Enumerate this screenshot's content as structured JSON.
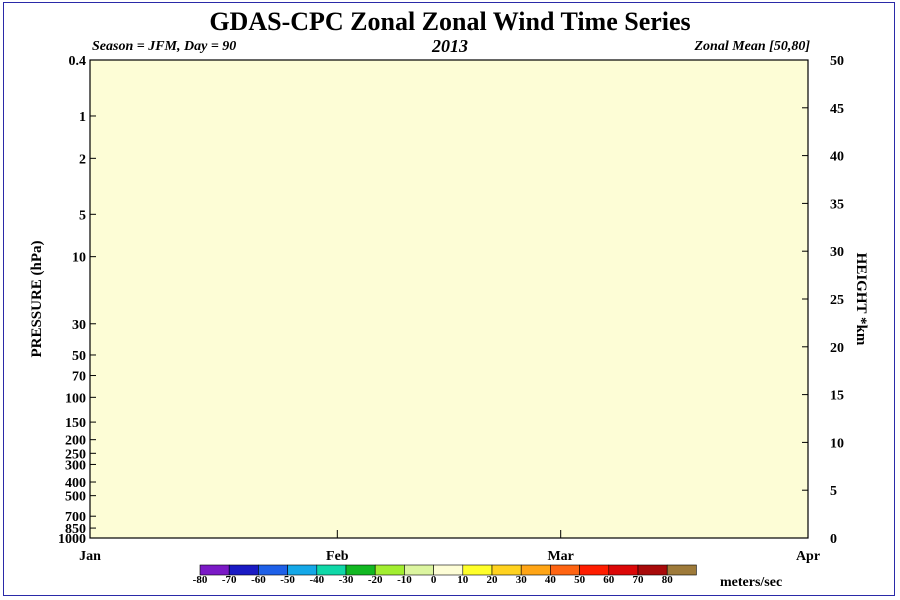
{
  "chart_data": {
    "type": "heatmap",
    "title": "GDAS-CPC Zonal Zonal Wind Time Series",
    "subtitle_left": "Season = JFM, Day =  90",
    "subtitle_center": "2013",
    "subtitle_right": "Zonal Mean [50,80]",
    "ylabel": "PRESSURE (hPa)",
    "ylabel_right": "HEIGHT *km",
    "colorbar_unit": "meters/sec",
    "x_ticks": [
      {
        "label": "Jan",
        "day": 0
      },
      {
        "label": "Feb",
        "day": 31
      },
      {
        "label": "Mar",
        "day": 59
      },
      {
        "label": "Apr",
        "day": 90
      }
    ],
    "xlim": [
      0,
      90
    ],
    "pressure_levels": [
      "0.4",
      "1",
      "2",
      "5",
      "10",
      "30",
      "50",
      "70",
      "100",
      "150",
      "200",
      "250",
      "300",
      "400",
      "500",
      "700",
      "850",
      "1000"
    ],
    "ylim_pressure": [
      1000,
      0.4
    ],
    "height_ticks": [
      "0",
      "5",
      "10",
      "15",
      "20",
      "25",
      "30",
      "35",
      "40",
      "45",
      "50"
    ],
    "ylim_height": [
      0,
      50
    ],
    "colorbar": [
      {
        "label": "-80",
        "from": -80,
        "to": -70,
        "color": "#7b19c6"
      },
      {
        "label": "-70",
        "from": -70,
        "to": -60,
        "color": "#1a1ac4"
      },
      {
        "label": "-60",
        "from": -60,
        "to": -50,
        "color": "#1e60e8"
      },
      {
        "label": "-50",
        "from": -50,
        "to": -40,
        "color": "#15a8e8"
      },
      {
        "label": "-40",
        "from": -40,
        "to": -30,
        "color": "#10d8a8"
      },
      {
        "label": "-30",
        "from": -30,
        "to": -20,
        "color": "#12b822"
      },
      {
        "label": "-20",
        "from": -20,
        "to": -10,
        "color": "#a2ee30"
      },
      {
        "label": "-10",
        "from": -10,
        "to": 0,
        "color": "#dcf5a0"
      },
      {
        "label": "0",
        "from": 0,
        "to": 10,
        "color": "#fdfdd6"
      },
      {
        "label": "10",
        "from": 10,
        "to": 20,
        "color": "#ffff2a"
      },
      {
        "label": "20",
        "from": 20,
        "to": 30,
        "color": "#ffd21f"
      },
      {
        "label": "30",
        "from": 30,
        "to": 40,
        "color": "#ffa516"
      },
      {
        "label": "40",
        "from": 40,
        "to": 50,
        "color": "#ff6412"
      },
      {
        "label": "50",
        "from": 50,
        "to": 60,
        "color": "#ff1d00"
      },
      {
        "label": "60",
        "from": 60,
        "to": 70,
        "color": "#dc0808"
      },
      {
        "label": "70",
        "from": 70,
        "to": 80,
        "color": "#a80a0a"
      },
      {
        "label": "80",
        "from": 80,
        "to": 90,
        "color": "#9e7a3a"
      }
    ]
  }
}
